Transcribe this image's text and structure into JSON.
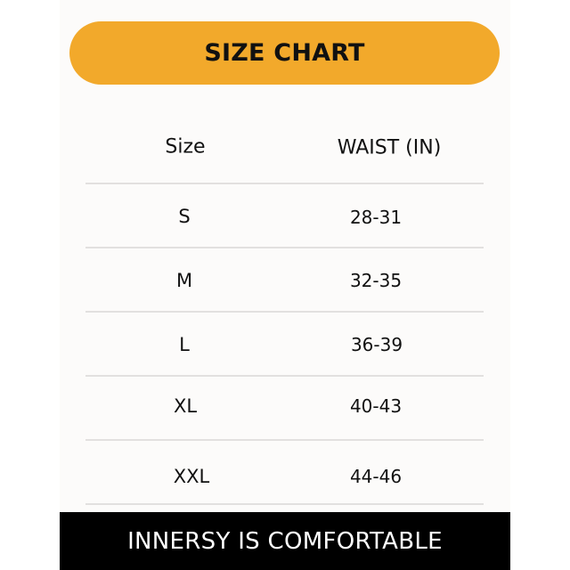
{
  "title": "SIZE CHART",
  "table": {
    "headers": [
      "Size",
      "WAIST (IN)"
    ],
    "rows": [
      {
        "size": "S",
        "waist": "28-31"
      },
      {
        "size": "M",
        "waist": "32-35"
      },
      {
        "size": "L",
        "waist": "36-39"
      },
      {
        "size": "XL",
        "waist": "40-43"
      },
      {
        "size": "XXL",
        "waist": "44-46"
      }
    ]
  },
  "footer": "INNERSY IS COMFORTABLE",
  "colors": {
    "accent": "#f2a92b",
    "footer_bg": "#000000",
    "panel_bg": "#fcfbfa"
  }
}
